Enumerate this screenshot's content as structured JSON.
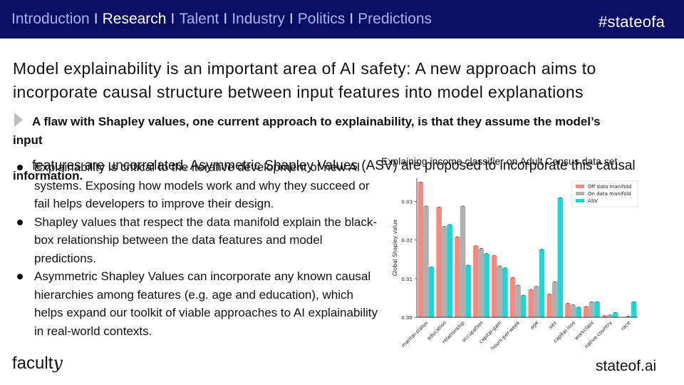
{
  "nav": {
    "items": [
      "Introduction",
      "Research",
      "Talent",
      "Industry",
      "Politics",
      "Predictions"
    ],
    "active": "Research",
    "separator": "I"
  },
  "hashtag": "#stateofa",
  "headline": "Model explainability is an important area of AI safety: A new approach aims to incorporate causal structure between input features into model explanations",
  "flaw": {
    "line1": "A flaw with Shapley values, one current approach to explainability, is that they assume the model’s",
    "line2": "input",
    "line3": "features are uncorrelated. Asymmetric Shapley Values (ASV) are proposed to incorporate this causal",
    "line4": "information."
  },
  "bullets": [
    "Explainability is critical to the iterative development of new AI systems. Exposing how models work and why they succeed or fail helps developers to improve their design.",
    "Shapley values that respect the data manifold explain the black-box relationship between the data features and model predictions.",
    "Asymmetric Shapley Values can incorporate any known causal hierarchies among features (e.g. age and education), which helps expand our toolkit of viable approaches to AI explainability in real-world contexts."
  ],
  "brand": {
    "main": "facult",
    "tail": "y"
  },
  "footer_site": "stateof.ai",
  "colors": {
    "topbar": "#0b0f63",
    "off_manifold": "#f28b82",
    "on_manifold": "#b0b0b0",
    "asv": "#1fd6d4"
  },
  "chart_data": {
    "type": "bar",
    "title": "Explaining income classifier on Adult Census data set",
    "ylabel": "Global Shapley value",
    "xlabel": "",
    "ylim": [
      0,
      0.036
    ],
    "yticks": [
      0.0,
      0.01,
      0.02,
      0.03
    ],
    "ytick_labels": [
      "0.00",
      "0.01",
      "0.02",
      "0.03"
    ],
    "legend_position": "top-right",
    "categories": [
      "marital-status",
      "education",
      "relationship",
      "occupation",
      "capital-gain",
      "hours-per-week",
      "age",
      "sex",
      "capital-loss",
      "workclass",
      "native-country",
      "race"
    ],
    "series": [
      {
        "name": "Off data manifold",
        "values": [
          0.035,
          0.0285,
          0.0208,
          0.0185,
          0.016,
          0.0103,
          0.0072,
          0.006,
          0.0036,
          0.0028,
          0.0004,
          0.0
        ]
      },
      {
        "name": "On data manifold",
        "values": [
          0.0288,
          0.0235,
          0.0288,
          0.0178,
          0.0133,
          0.0083,
          0.008,
          0.0092,
          0.0032,
          0.004,
          0.0006,
          0.0003
        ]
      },
      {
        "name": "ASV",
        "values": [
          0.013,
          0.024,
          0.0135,
          0.0165,
          0.0128,
          0.0057,
          0.0176,
          0.031,
          0.0026,
          0.004,
          0.0012,
          0.004
        ]
      }
    ]
  }
}
